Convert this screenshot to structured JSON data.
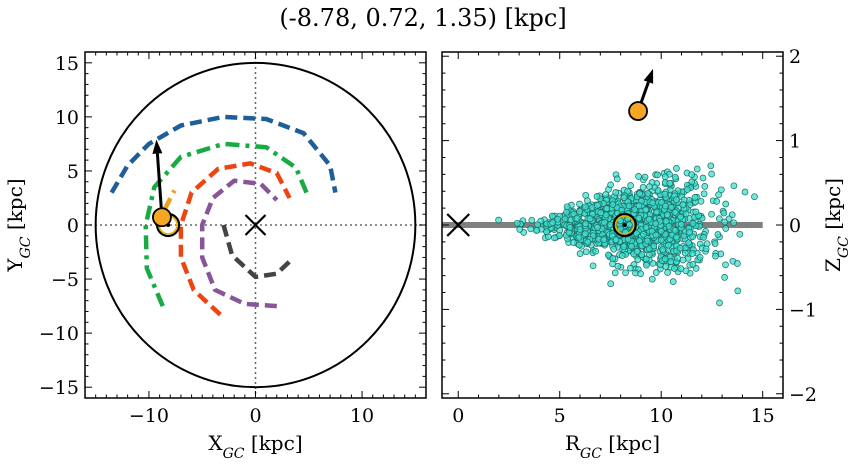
{
  "title": "(-8.78, 0.72, 1.35) [kpc]",
  "chart_data": [
    {
      "type": "scatter",
      "panel": "left",
      "xlabel_main": "X",
      "xlabel_sub": "GC",
      "xlabel_unit": " [kpc]",
      "ylabel_main": "Y",
      "ylabel_sub": "GC",
      "ylabel_unit": " [kpc]",
      "xlim": [
        -16,
        16
      ],
      "ylim": [
        -16,
        16
      ],
      "xticks": [
        -10,
        0,
        10
      ],
      "xtick_labels": [
        "−10",
        "0",
        "10"
      ],
      "yticks": [
        -15,
        -10,
        -5,
        0,
        5,
        10,
        15
      ],
      "ytick_labels": [
        "−15",
        "−10",
        "−5",
        "0",
        "5",
        "10",
        "15"
      ],
      "boundary_circle_radius": 15,
      "galactic_center": [
        0,
        0
      ],
      "sun": [
        -8.2,
        0
      ],
      "object": [
        -8.78,
        0.72
      ],
      "velocity_arrow_tip": [
        -9.3,
        7.9
      ],
      "spiral_arms": [
        {
          "color": "#1f5f99",
          "style": "dashed",
          "points": [
            [
              -13.5,
              3
            ],
            [
              -12,
              5.5
            ],
            [
              -10,
              7.5
            ],
            [
              -7,
              9.2
            ],
            [
              -3,
              10
            ],
            [
              1,
              9.8
            ],
            [
              4.5,
              8.5
            ],
            [
              7,
              5.5
            ],
            [
              7.5,
              3
            ]
          ]
        },
        {
          "color": "#1aaa44",
          "style": "dashdot",
          "points": [
            [
              -8.7,
              -7.5
            ],
            [
              -10.2,
              -4
            ],
            [
              -10.3,
              0
            ],
            [
              -9.5,
              3.5
            ],
            [
              -7,
              6.3
            ],
            [
              -3,
              7.5
            ],
            [
              1,
              7.2
            ],
            [
              3.8,
              5.3
            ],
            [
              5,
              2.5
            ]
          ]
        },
        {
          "color": "#ee4411",
          "style": "dashed",
          "points": [
            [
              -3.3,
              -8.3
            ],
            [
              -5.8,
              -6
            ],
            [
              -7,
              -3
            ],
            [
              -7,
              0
            ],
            [
              -6,
              3
            ],
            [
              -3.5,
              5.2
            ],
            [
              -0.5,
              5.7
            ],
            [
              2,
              4.8
            ],
            [
              3.2,
              2.5
            ]
          ]
        },
        {
          "color": "#885599",
          "style": "dashed",
          "points": [
            [
              2,
              -7.5
            ],
            [
              -1,
              -7.3
            ],
            [
              -3.8,
              -6
            ],
            [
              -5,
              -3
            ],
            [
              -5,
              0
            ],
            [
              -4,
              2.5
            ],
            [
              -2,
              4.1
            ],
            [
              0.5,
              3.8
            ],
            [
              2,
              2.3
            ]
          ]
        },
        {
          "color": "#444444",
          "style": "dashed",
          "points": [
            [
              -3,
              0
            ],
            [
              -2.2,
              -2.8
            ],
            [
              0,
              -4.8
            ],
            [
              2,
              -4.5
            ],
            [
              3.5,
              -3.1
            ]
          ]
        },
        {
          "color": "#f0a020",
          "style": "dashed",
          "points": [
            [
              -8.5,
              1.5
            ],
            [
              -7.6,
              3.2
            ]
          ]
        }
      ]
    },
    {
      "type": "scatter",
      "panel": "right",
      "xlabel_main": "R",
      "xlabel_sub": "GC",
      "xlabel_unit": " [kpc]",
      "ylabel_main": "Z",
      "ylabel_sub": "GC",
      "ylabel_unit": " [kpc]",
      "xlim": [
        -0.8,
        16
      ],
      "ylim": [
        -2.05,
        2.05
      ],
      "xticks": [
        0,
        5,
        10,
        15
      ],
      "xtick_labels": [
        "0",
        "5",
        "10",
        "15"
      ],
      "yticks": [
        -2,
        -1,
        0,
        1,
        2
      ],
      "ytick_labels": [
        "−2",
        "−1",
        "0",
        "1",
        "2"
      ],
      "disk_plane": {
        "x": [
          -0.8,
          15
        ],
        "z": 0
      },
      "galactic_center": [
        0,
        0
      ],
      "sun": [
        8.2,
        0
      ],
      "object": [
        8.86,
        1.35
      ],
      "velocity_arrow_tip": [
        9.6,
        1.85
      ],
      "clusters_color": "#40e0d0"
    }
  ],
  "colors": {
    "sun_marker": "#e8b000",
    "object_marker": "#f5a623",
    "disk_line": "#808080",
    "scatter_fill": "#40e0d0",
    "scatter_edge": "#1a6b64"
  }
}
